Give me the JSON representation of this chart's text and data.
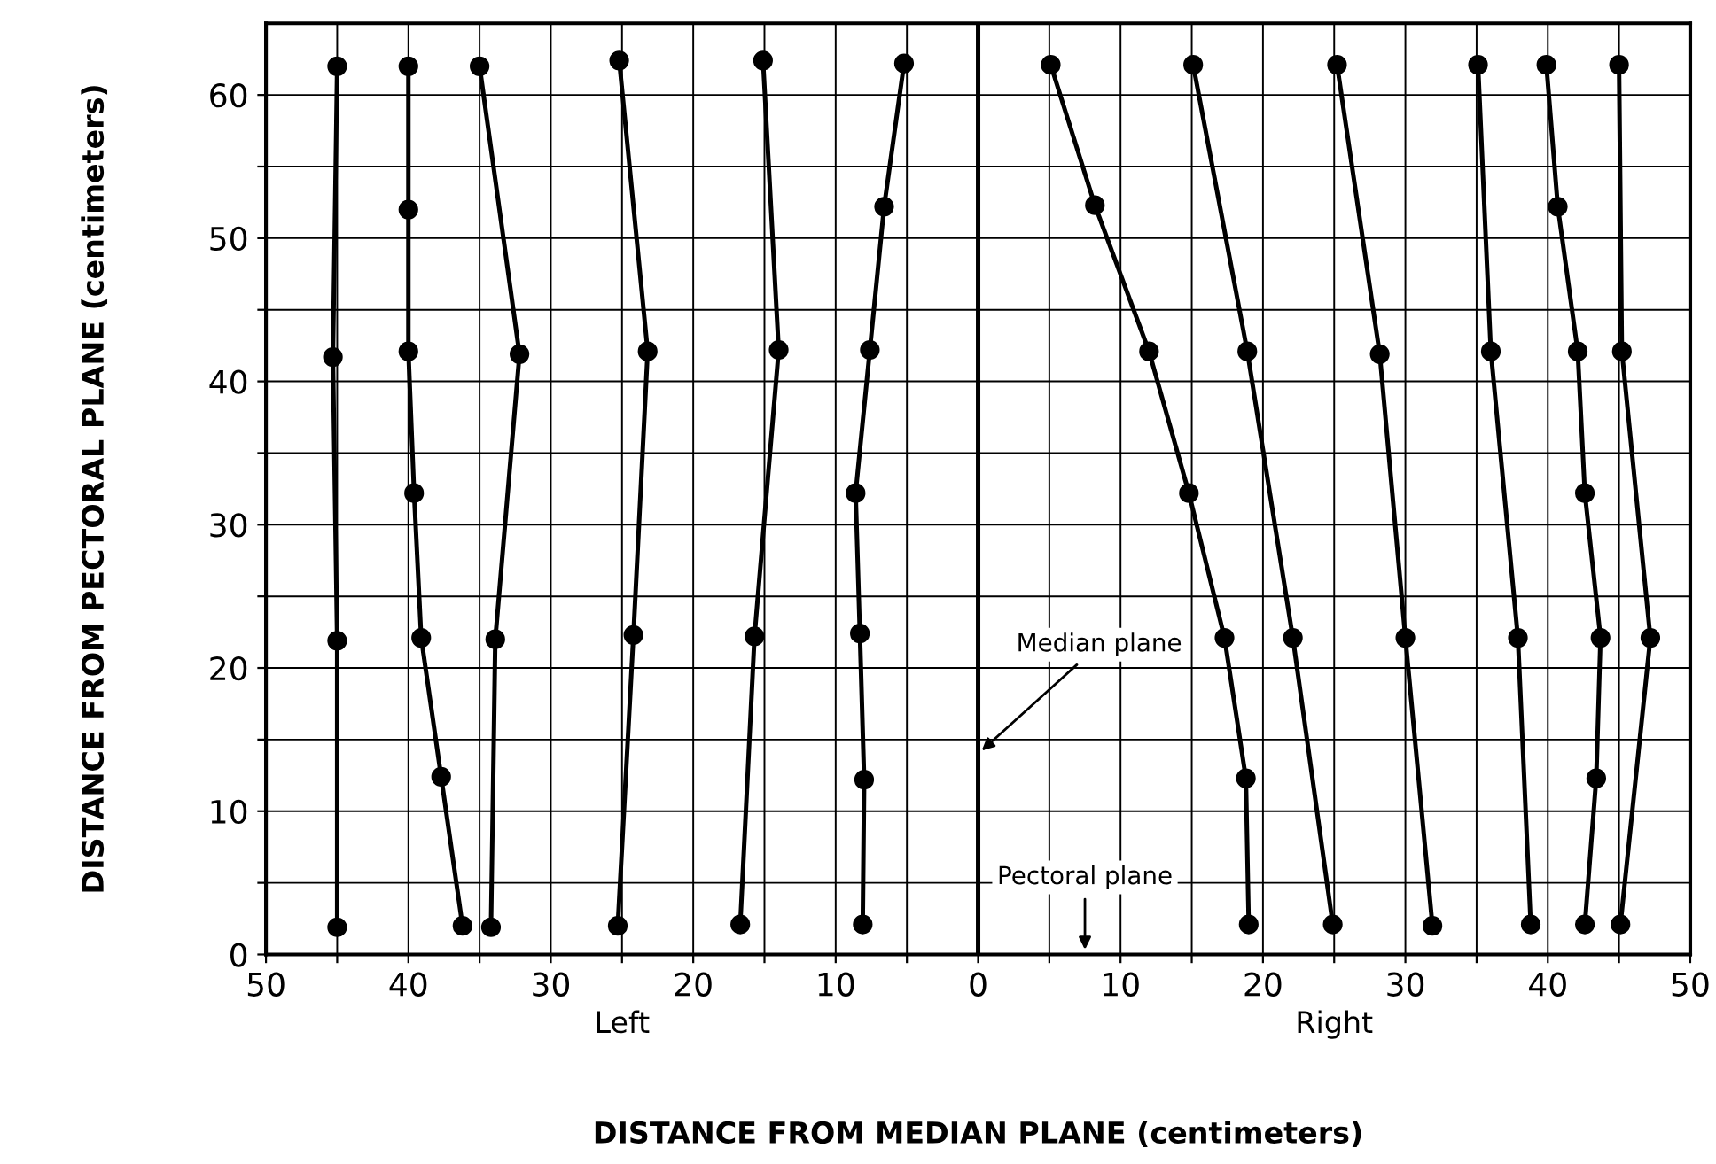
{
  "chart_data": {
    "type": "line",
    "xlabel": "DISTANCE FROM MEDIAN PLANE (centimeters)",
    "ylabel": "DISTANCE FROM PECTORAL PLANE (centimeters)",
    "xlim": [
      -50,
      50
    ],
    "ylim": [
      0,
      65
    ],
    "xticks": [
      {
        "value": -50,
        "label": "50"
      },
      {
        "value": -45,
        "label": null
      },
      {
        "value": -40,
        "label": "40"
      },
      {
        "value": -35,
        "label": null
      },
      {
        "value": -30,
        "label": "30"
      },
      {
        "value": -25,
        "label": null
      },
      {
        "value": -20,
        "label": "20"
      },
      {
        "value": -15,
        "label": null
      },
      {
        "value": -10,
        "label": "10"
      },
      {
        "value": -5,
        "label": null
      },
      0,
      {
        "value": 5,
        "label": null
      },
      10,
      {
        "value": 15,
        "label": null
      },
      20,
      {
        "value": 25,
        "label": null
      },
      30,
      {
        "value": 35,
        "label": null
      },
      40,
      {
        "value": 45,
        "label": null
      },
      50
    ],
    "yticks": [
      0,
      {
        "value": 5,
        "label": null
      },
      10,
      {
        "value": 15,
        "label": null
      },
      20,
      {
        "value": 25,
        "label": null
      },
      30,
      {
        "value": 35,
        "label": null
      },
      40,
      {
        "value": 45,
        "label": null
      },
      50,
      {
        "value": 55,
        "label": null
      },
      60
    ],
    "grid": true,
    "marker": "circle",
    "line_style": "solid",
    "ref_lines": [
      {
        "axis": "x",
        "value": 0,
        "color": "#000000"
      }
    ],
    "annotations": [
      "Left",
      "Right",
      {
        "text": "Median plane",
        "x": 0,
        "y": 14
      },
      "Pectoral plane"
    ],
    "series": [
      {
        "color": "#000000",
        "x": [
          -45,
          -45.3,
          -45,
          -45
        ],
        "values": [
          62,
          41.7,
          21.9,
          1.9
        ]
      },
      {
        "color": "#000000",
        "x": [
          -40,
          -40,
          -40,
          -39.6,
          -39.1,
          -37.7,
          -36.2
        ],
        "values": [
          62,
          52,
          42.1,
          32.2,
          22.1,
          12.4,
          2
        ]
      },
      {
        "color": "#000000",
        "x": [
          -35,
          -32.2,
          -33.9,
          -34.2
        ],
        "values": [
          62,
          41.9,
          22,
          1.9
        ]
      },
      {
        "color": "#000000",
        "x": [
          -25.2,
          -23.2,
          -24.2,
          -25.3
        ],
        "values": [
          62.4,
          42.1,
          22.3,
          2
        ]
      },
      {
        "color": "#000000",
        "x": [
          -15.1,
          -14,
          -15.7,
          -16.7
        ],
        "values": [
          62.4,
          42.2,
          22.2,
          2.1
        ]
      },
      {
        "color": "#000000",
        "x": [
          -5.2,
          -6.6,
          -7.6,
          -8.6,
          -8.3,
          -8,
          -8.1
        ],
        "values": [
          62.2,
          52.2,
          42.2,
          32.2,
          22.4,
          12.2,
          2.1
        ]
      },
      {
        "color": "#000000",
        "x": [
          5.1,
          8.2,
          12,
          14.8,
          17.3,
          18.8,
          19
        ],
        "values": [
          62.1,
          52.3,
          42.1,
          32.2,
          22.1,
          12.3,
          2.1
        ]
      },
      {
        "color": "#000000",
        "x": [
          15.1,
          18.9,
          22.1,
          24.9
        ],
        "values": [
          62.1,
          42.1,
          22.1,
          2.1
        ]
      },
      {
        "color": "#000000",
        "x": [
          25.2,
          28.2,
          30,
          31.9
        ],
        "values": [
          62.1,
          41.9,
          22.1,
          2
        ]
      },
      {
        "color": "#000000",
        "x": [
          35.1,
          36,
          37.9,
          38.8
        ],
        "values": [
          62.1,
          42.1,
          22.1,
          2.1
        ]
      },
      {
        "color": "#000000",
        "x": [
          39.9,
          40.7,
          42.1,
          42.6,
          43.7,
          43.4,
          42.6
        ],
        "values": [
          62.1,
          52.2,
          42.1,
          32.2,
          22.1,
          12.3,
          2.1
        ]
      },
      {
        "color": "#000000",
        "x": [
          45,
          45.2,
          47.2,
          45.1
        ],
        "values": [
          62.1,
          42.1,
          22.1,
          2.1
        ]
      }
    ]
  }
}
